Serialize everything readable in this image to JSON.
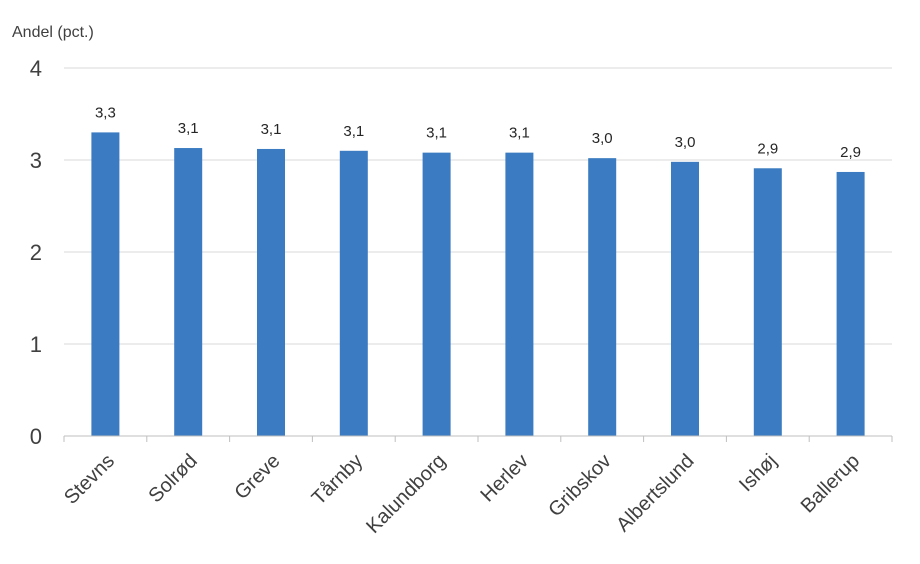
{
  "chart_data": {
    "type": "bar",
    "ylabel": "Andel (pct.)",
    "categories": [
      "Stevns",
      "Solrød",
      "Greve",
      "Tårnby",
      "Kalundborg",
      "Herlev",
      "Gribskov",
      "Albertslund",
      "Ishøj",
      "Ballerup"
    ],
    "values": [
      3.3,
      3.13,
      3.12,
      3.1,
      3.08,
      3.08,
      3.02,
      2.98,
      2.91,
      2.87
    ],
    "data_labels": [
      "3,3",
      "3,1",
      "3,1",
      "3,1",
      "3,1",
      "3,1",
      "3,0",
      "3,0",
      "2,9",
      "2,9"
    ],
    "ylim": [
      0,
      4
    ],
    "yticks": [
      0,
      1,
      2,
      3,
      4
    ],
    "ytick_labels": [
      "0",
      "1",
      "2",
      "3",
      "4"
    ],
    "grid": true,
    "legend": "none",
    "colors": {
      "bar": "#3a7bc1",
      "grid": "#d9d9d9",
      "axis": "#bfbfbf"
    }
  }
}
